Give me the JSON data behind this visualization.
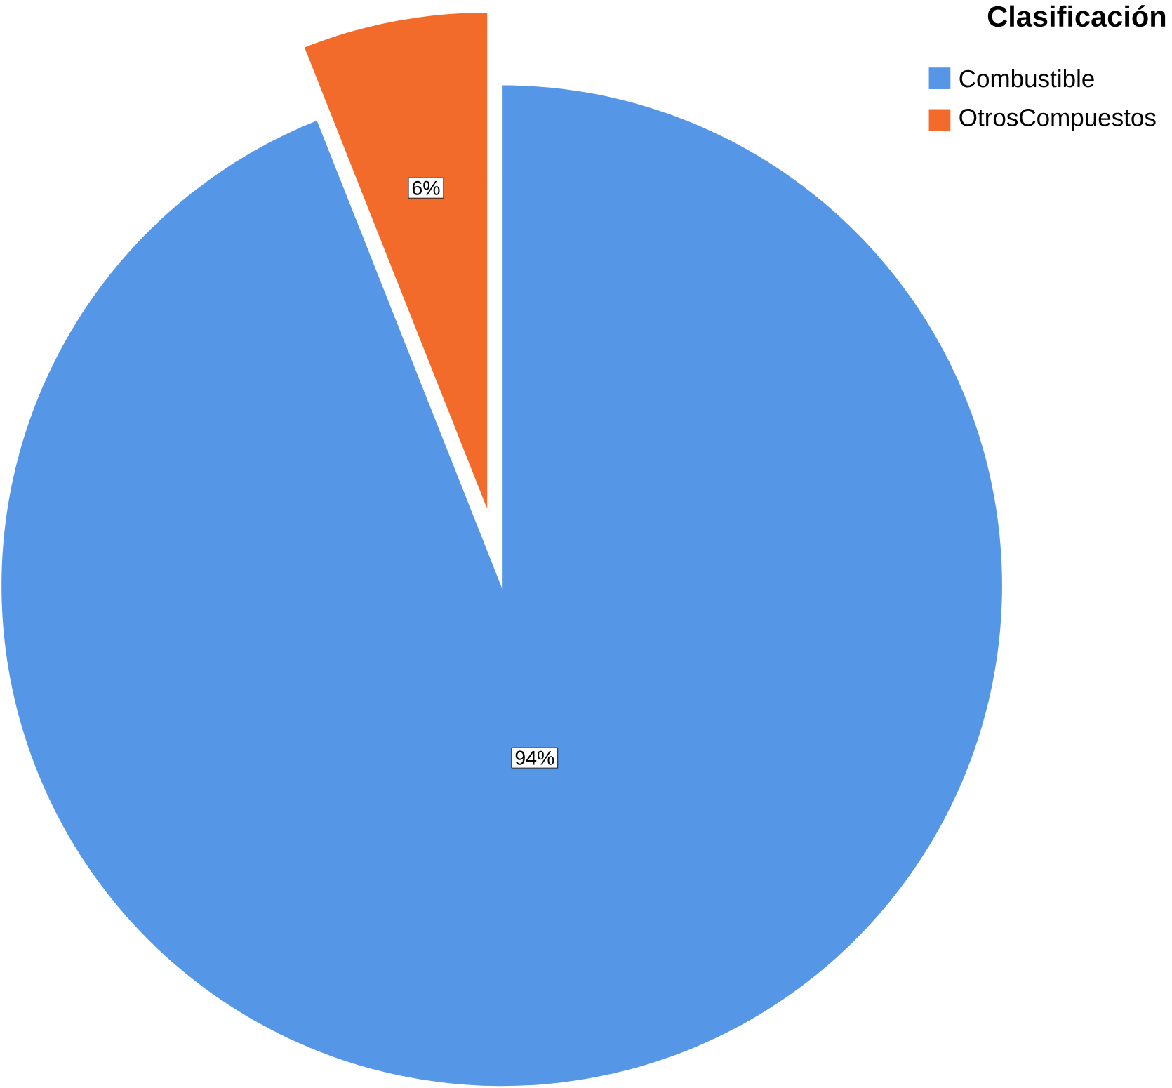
{
  "chart_data": {
    "type": "pie",
    "legend_title": "Clasificación",
    "legend": "top right",
    "categories": [
      "Combustible",
      "OtrosCompuestos"
    ],
    "values": [
      94,
      6
    ],
    "colors": [
      "#5596e6",
      "#f26b2a"
    ],
    "value_labels": [
      "94%",
      "6%"
    ]
  }
}
